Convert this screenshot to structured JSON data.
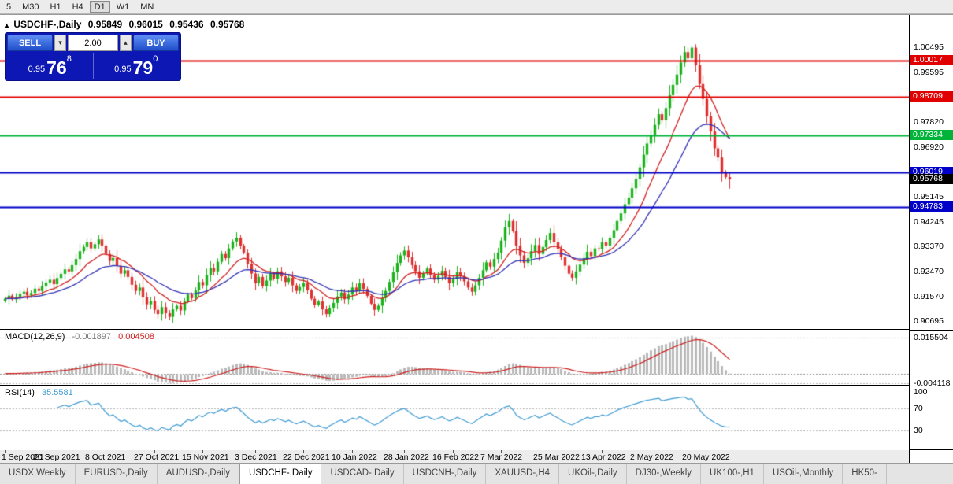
{
  "toolbar": {
    "timeframes": [
      "5",
      "M30",
      "H1",
      "H4",
      "D1",
      "W1",
      "MN"
    ],
    "selected": "D1"
  },
  "chart": {
    "collapse_icon": "▴",
    "symbol_title": "USDCHF-,Daily",
    "ohlc": {
      "open": "0.95849",
      "high": "0.96015",
      "low": "0.95436",
      "close": "0.95768"
    },
    "trade_panel": {
      "sell_label": "SELL",
      "buy_label": "BUY",
      "volume": "2.00",
      "volume_down_icon": "▾",
      "volume_up_icon": "▴",
      "sell_price": {
        "small": "0.95",
        "big": "76",
        "sup": "8"
      },
      "buy_price": {
        "small": "0.95",
        "big": "79",
        "sup": "0"
      }
    },
    "price_scale": {
      "plain_ticks": [
        "1.00495",
        "0.99595",
        "0.97820",
        "0.96920",
        "0.95145",
        "0.94245",
        "0.93370",
        "0.92470",
        "0.91570",
        "0.90695"
      ],
      "current_price": {
        "label": "0.95768",
        "value": 0.95768,
        "bg": "#000000"
      }
    },
    "hlines": [
      {
        "label": "1.00017",
        "value": 1.00017,
        "color": "#e00000"
      },
      {
        "label": "0.98709",
        "value": 0.98709,
        "color": "#e00000"
      },
      {
        "label": "0.97334",
        "value": 0.97334,
        "color": "#00b43a"
      },
      {
        "label": "0.96019",
        "value": 0.96019,
        "color": "#0000c8"
      },
      {
        "label": "0.94783",
        "value": 0.94783,
        "color": "#0000c8"
      }
    ]
  },
  "chart_data": {
    "type": "candlestick",
    "title": "USDCHF-,Daily",
    "x_labels": [
      "1 Sep 2021",
      "20 Sep 2021",
      "8 Oct 2021",
      "27 Oct 2021",
      "15 Nov 2021",
      "3 Dec 2021",
      "22 Dec 2021",
      "10 Jan 2022",
      "28 Jan 2022",
      "16 Feb 2022",
      "7 Mar 2022",
      "25 Mar 2022",
      "13 Apr 2022",
      "2 May 2022",
      "20 May 2022"
    ],
    "x_label_indices": [
      0,
      13,
      27,
      40,
      53,
      67,
      80,
      93,
      107,
      120,
      133,
      147,
      160,
      173,
      187
    ],
    "y_range": {
      "max": 1.0165,
      "min": 0.9039
    },
    "closes": [
      0.915,
      0.9161,
      0.9148,
      0.9155,
      0.9168,
      0.9175,
      0.9162,
      0.917,
      0.9186,
      0.9178,
      0.9195,
      0.9208,
      0.9218,
      0.9202,
      0.9224,
      0.9239,
      0.9255,
      0.9248,
      0.927,
      0.9292,
      0.932,
      0.9335,
      0.9352,
      0.933,
      0.9345,
      0.9362,
      0.934,
      0.931,
      0.9285,
      0.9296,
      0.9268,
      0.924,
      0.9252,
      0.9228,
      0.92,
      0.9178,
      0.919,
      0.9155,
      0.913,
      0.9142,
      0.911,
      0.9095,
      0.912,
      0.9098,
      0.9085,
      0.9112,
      0.9125,
      0.9108,
      0.914,
      0.9165,
      0.9152,
      0.918,
      0.921,
      0.9198,
      0.9235,
      0.926,
      0.9248,
      0.9282,
      0.931,
      0.9295,
      0.933,
      0.9355,
      0.9368,
      0.934,
      0.9315,
      0.9275,
      0.924,
      0.9205,
      0.9228,
      0.9195,
      0.9215,
      0.924,
      0.9222,
      0.9248,
      0.923,
      0.921,
      0.9225,
      0.9198,
      0.9178,
      0.9192,
      0.9205,
      0.918,
      0.915,
      0.9128,
      0.914,
      0.9112,
      0.9095,
      0.9118,
      0.9135,
      0.9158,
      0.9172,
      0.9148,
      0.9165,
      0.919,
      0.9178,
      0.9205,
      0.9185,
      0.916,
      0.9132,
      0.911,
      0.9125,
      0.9152,
      0.9178,
      0.921,
      0.9245,
      0.9278,
      0.9305,
      0.9322,
      0.9298,
      0.927,
      0.9248,
      0.9225,
      0.924,
      0.9258,
      0.9235,
      0.9218,
      0.9232,
      0.925,
      0.9228,
      0.9205,
      0.922,
      0.9245,
      0.923,
      0.9212,
      0.919,
      0.9175,
      0.9198,
      0.9225,
      0.9252,
      0.928,
      0.9265,
      0.9292,
      0.9315,
      0.9358,
      0.9405,
      0.9428,
      0.9392,
      0.934,
      0.9305,
      0.9278,
      0.9295,
      0.932,
      0.9342,
      0.931,
      0.9335,
      0.936,
      0.9385,
      0.9352,
      0.9328,
      0.9298,
      0.9268,
      0.924,
      0.9225,
      0.9248,
      0.9272,
      0.9295,
      0.9318,
      0.9302,
      0.933,
      0.9328,
      0.9352,
      0.934,
      0.9368,
      0.9395,
      0.9428,
      0.9455,
      0.9488,
      0.9512,
      0.9545,
      0.9578,
      0.962,
      0.9665,
      0.9705,
      0.9735,
      0.9772,
      0.981,
      0.9788,
      0.9832,
      0.9878,
      0.9915,
      0.9952,
      0.9995,
      1.0032,
      1.001,
      1.0048,
      0.9985,
      0.9918,
      0.9865,
      0.9802,
      0.9748,
      0.9688,
      0.9655,
      0.9602,
      0.9585,
      0.9577
    ],
    "last_candle": {
      "o": 0.95849,
      "h": 0.96015,
      "l": 0.95436,
      "c": 0.95768
    },
    "style": {
      "bull": "#1cb21c",
      "bear": "#e03030",
      "ma_fast": "#d02020",
      "ma_slow": "#3232b4"
    }
  },
  "macd": {
    "label": "MACD(12,26,9)",
    "main_value": "-0.001897",
    "signal_value": "0.004508",
    "scale_labels": [
      "0.015504",
      "-0.004118"
    ],
    "range": {
      "max": 0.0185,
      "min": -0.0052
    },
    "style": {
      "histogram": "#b9b9b9",
      "signal": "#cc2020"
    }
  },
  "rsi": {
    "label": "RSI(14)",
    "value": "35.5581",
    "levels": [
      "100",
      "70",
      "30"
    ],
    "range": {
      "max": 110,
      "min": -5
    },
    "style": {
      "line": "#3e9ad2"
    }
  },
  "tabs": {
    "items": [
      "USDX,Weekly",
      "EURUSD-,Daily",
      "AUDUSD-,Daily",
      "USDCHF-,Daily",
      "USDCAD-,Daily",
      "USDCNH-,Daily",
      "XAUUSD-,H4",
      "UKOil-,Daily",
      "DJ30-,Weekly",
      "UK100-,H1",
      "USOil-,Monthly",
      "HK50-"
    ],
    "active": "USDCHF-,Daily"
  }
}
